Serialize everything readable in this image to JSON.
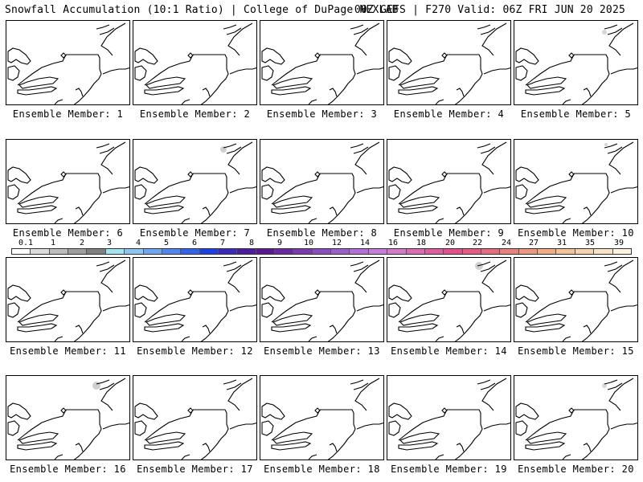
{
  "header": {
    "title": "Snowfall Accumulation (10:1 Ratio) | College of DuPage NEXLAB",
    "run_info": "00Z GEFS | F270 Valid: 06Z FRI JUN 20 2025"
  },
  "panels": [
    {
      "label": "Ensemble Member: 1",
      "snow_patch": false
    },
    {
      "label": "Ensemble Member: 2",
      "snow_patch": false
    },
    {
      "label": "Ensemble Member: 3",
      "snow_patch": false
    },
    {
      "label": "Ensemble Member: 4",
      "snow_patch": false
    },
    {
      "label": "Ensemble Member: 5",
      "snow_patch": true
    },
    {
      "label": "Ensemble Member: 6",
      "snow_patch": false
    },
    {
      "label": "Ensemble Member: 7",
      "snow_patch": true
    },
    {
      "label": "Ensemble Member: 8",
      "snow_patch": false
    },
    {
      "label": "Ensemble Member: 9",
      "snow_patch": false
    },
    {
      "label": "Ensemble Member: 10",
      "snow_patch": true
    },
    {
      "label": "Ensemble Member: 11",
      "snow_patch": false
    },
    {
      "label": "Ensemble Member: 12",
      "snow_patch": false
    },
    {
      "label": "Ensemble Member: 13",
      "snow_patch": false
    },
    {
      "label": "Ensemble Member: 14",
      "snow_patch": true
    },
    {
      "label": "Ensemble Member: 15",
      "snow_patch": false
    },
    {
      "label": "Ensemble Member: 16",
      "snow_patch": true
    },
    {
      "label": "Ensemble Member: 17",
      "snow_patch": false
    },
    {
      "label": "Ensemble Member: 18",
      "snow_patch": false
    },
    {
      "label": "Ensemble Member: 19",
      "snow_patch": false
    },
    {
      "label": "Ensemble Member: 20",
      "snow_patch": true
    }
  ],
  "colorbar": {
    "ticks": [
      "0.1",
      "1",
      "2",
      "3",
      "4",
      "5",
      "6",
      "7",
      "8",
      "9",
      "10",
      "12",
      "14",
      "16",
      "18",
      "20",
      "22",
      "24",
      "27",
      "31",
      "35",
      "39"
    ],
    "colors": [
      "#ffffff",
      "#dcdcdc",
      "#bdbdbd",
      "#9e9e9e",
      "#7f7f7f",
      "#a6e3f0",
      "#8fc3f0",
      "#6fa6ee",
      "#5384ea",
      "#3563e6",
      "#1f3fe0",
      "#3a2bb6",
      "#4b1f9a",
      "#5a1a8f",
      "#6a2a9e",
      "#7a3cad",
      "#8a4ebc",
      "#9a60c9",
      "#b46fd6",
      "#c47ed8",
      "#d27cc9",
      "#d86db4",
      "#dc5e9f",
      "#e0508c",
      "#e35c84",
      "#e46e80",
      "#e8827f",
      "#ec977f",
      "#f0ac86",
      "#f3c19a",
      "#f6d3b0",
      "#f9e3c8",
      "#fdf1e2"
    ]
  }
}
